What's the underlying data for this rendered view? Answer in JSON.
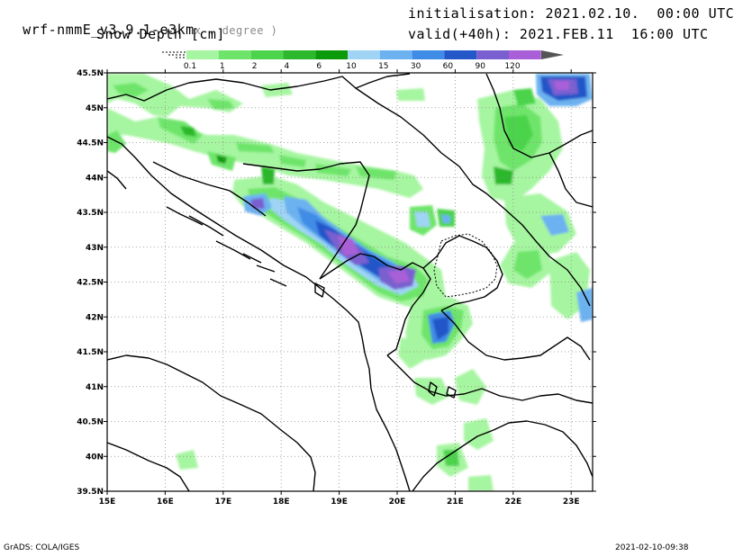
{
  "header": {
    "model": "wrf-nmmE_v3.9.1-e3km",
    "model_suffix": "x . degree )",
    "field": "Snow Depth [cm]",
    "init_label": "initialisation: 2021.02.10.  00:00 UTC",
    "valid_label": "valid(+40h): 2021.FEB.11  16:00 UTC"
  },
  "legend": {
    "labels": [
      "0.1",
      "1",
      "2",
      "4",
      "6",
      "10",
      "15",
      "30",
      "60",
      "90",
      "120"
    ],
    "colors": [
      "#a6f5a0",
      "#6ee56a",
      "#4cd44c",
      "#2cb82c",
      "#0a9a0a",
      "#9fd4f5",
      "#6cb2f0",
      "#3f8ce6",
      "#2457c8",
      "#7a5fd0",
      "#a85fd8"
    ]
  },
  "axes": {
    "lat_labels": [
      "45.5N",
      "45N",
      "44.5N",
      "44N",
      "43.5N",
      "43N",
      "42.5N",
      "42N",
      "41.5N",
      "41N",
      "40.5N",
      "40N",
      "39.5N"
    ],
    "lon_labels": [
      "15E",
      "16E",
      "17E",
      "18E",
      "19E",
      "20E",
      "21E",
      "22E",
      "23E"
    ]
  },
  "footer": {
    "left": "GrADS: COLA/IGES",
    "right": "2021-02-10-09:38"
  }
}
